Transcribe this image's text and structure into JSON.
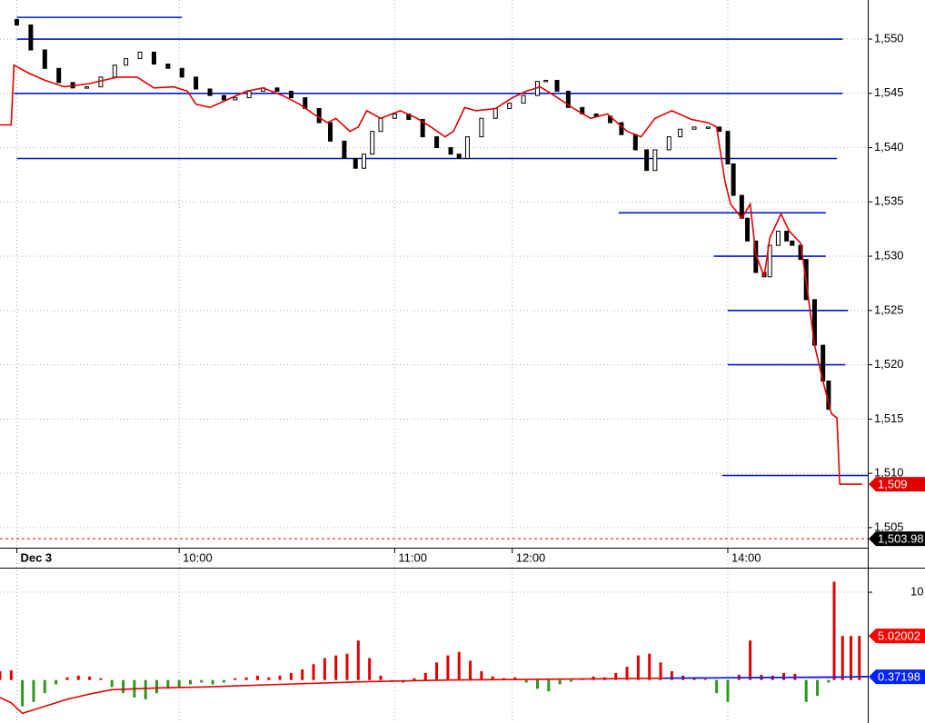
{
  "chart_data": [
    {
      "type": "candlestick",
      "xlim": [
        0,
        310
      ],
      "ylim": [
        1503.4,
        1553.6
      ],
      "xticks": [
        {
          "value": 6,
          "label": "Dec 3"
        },
        {
          "value": 64,
          "label": "10:00"
        },
        {
          "value": 141,
          "label": "11:00"
        },
        {
          "value": 183,
          "label": "12:00"
        },
        {
          "value": 260,
          "label": "14:00"
        }
      ],
      "yticks": [
        {
          "value": 1550,
          "label": "1,550"
        },
        {
          "value": 1545,
          "label": "1,545"
        },
        {
          "value": 1540,
          "label": "1,540"
        },
        {
          "value": 1535,
          "label": "1,535"
        },
        {
          "value": 1530,
          "label": "1,530"
        },
        {
          "value": 1525,
          "label": "1,525"
        },
        {
          "value": 1520,
          "label": "1,520"
        },
        {
          "value": 1515,
          "label": "1,515"
        },
        {
          "value": 1510,
          "label": "1,510"
        },
        {
          "value": 1505,
          "label": "1,505"
        }
      ],
      "grid": true,
      "up_color": "#ffffff",
      "down_color": "#000000",
      "x": [
        6,
        11,
        16,
        21,
        26,
        31,
        36,
        41,
        45,
        50,
        55,
        60,
        65,
        70,
        75,
        80,
        84,
        89,
        94,
        99,
        104,
        109,
        114,
        118,
        123,
        127,
        130,
        133,
        136,
        141,
        146,
        151,
        156,
        161,
        164,
        167,
        172,
        177,
        182,
        187,
        192,
        195,
        199,
        203,
        208,
        213,
        218,
        222,
        227,
        231,
        234,
        239,
        243,
        248,
        253,
        257,
        260,
        262,
        265,
        267,
        270,
        273,
        275,
        278,
        281,
        283,
        286,
        288,
        291,
        294,
        296
      ],
      "open": [
        1551.8,
        1551.3,
        1549,
        1547.3,
        1546,
        1545.5,
        1545.6,
        1546.5,
        1547.6,
        1548.2,
        1548.8,
        1547.7,
        1547.3,
        1546.5,
        1545.4,
        1544.8,
        1544.4,
        1544.6,
        1545.2,
        1545.5,
        1545.2,
        1544.6,
        1543.6,
        1542.3,
        1540.6,
        1539,
        1538.1,
        1539.4,
        1541.5,
        1542.7,
        1543.1,
        1542.6,
        1541,
        1540,
        1539.4,
        1539,
        1541,
        1542.7,
        1543.6,
        1544.1,
        1544.8,
        1546.1,
        1546.2,
        1545.2,
        1543.7,
        1543.1,
        1542.9,
        1542.3,
        1541.2,
        1539.8,
        1537.9,
        1539.8,
        1541,
        1541.7,
        1541.9,
        1541.9,
        1541.5,
        1538.5,
        1535.6,
        1533.5,
        1531.4,
        1528.5,
        1528.1,
        1531,
        1532.3,
        1531.4,
        1531,
        1529.7,
        1526,
        1521.8,
        1518.5
      ],
      "close": [
        1551.3,
        1549,
        1547.3,
        1546,
        1545.5,
        1545.6,
        1546.5,
        1547.6,
        1548.2,
        1548.8,
        1547.7,
        1547.3,
        1546.5,
        1545.4,
        1544.8,
        1544.4,
        1544.6,
        1545.2,
        1545.5,
        1545.2,
        1544.6,
        1543.6,
        1542.3,
        1540.6,
        1539,
        1538.1,
        1539.4,
        1541.5,
        1542.7,
        1543.1,
        1542.6,
        1541,
        1540,
        1539.4,
        1539,
        1541,
        1542.7,
        1543.6,
        1544.1,
        1544.8,
        1546.1,
        1546.2,
        1545.2,
        1543.7,
        1543.1,
        1542.9,
        1542.3,
        1541.2,
        1539.8,
        1537.9,
        1539.8,
        1541,
        1541.7,
        1541.9,
        1541.9,
        1541.5,
        1538.5,
        1535.6,
        1533.5,
        1531.4,
        1528.5,
        1528.1,
        1531,
        1532.3,
        1531.4,
        1531,
        1529.7,
        1526,
        1521.8,
        1518.5,
        1515.9
      ],
      "lines": [
        {
          "color": "#e00000",
          "x": [
            0,
            4,
            5,
            10,
            16,
            23,
            32,
            42,
            49,
            55,
            62,
            67,
            70,
            75,
            81,
            88,
            94,
            101,
            107,
            112,
            117,
            120,
            125,
            128,
            131,
            136,
            143,
            149,
            154,
            159,
            162,
            166,
            170,
            177,
            183,
            188,
            193,
            198,
            205,
            211,
            217,
            224,
            229,
            234,
            240,
            247,
            253,
            256,
            259,
            261,
            265,
            268,
            270,
            273,
            275,
            279,
            282,
            286,
            288,
            291,
            294,
            297,
            299,
            300,
            308
          ],
          "values": [
            1542.1,
            1542.1,
            1547.6,
            1546.9,
            1546.2,
            1545.6,
            1545.9,
            1546.5,
            1546.5,
            1545.5,
            1545.6,
            1545.2,
            1544,
            1543.7,
            1544.4,
            1545.2,
            1545.5,
            1544.8,
            1544,
            1543.1,
            1542.3,
            1542.7,
            1541.5,
            1541.9,
            1543.4,
            1542.7,
            1543.4,
            1542.7,
            1541.9,
            1541,
            1541.5,
            1543.7,
            1543.4,
            1543.6,
            1544.6,
            1545.2,
            1545.6,
            1544.8,
            1543.6,
            1542.7,
            1543.1,
            1541.5,
            1541,
            1542.7,
            1543.4,
            1542.6,
            1542.3,
            1541.9,
            1536.9,
            1534.8,
            1533.5,
            1534.8,
            1530.2,
            1528.1,
            1531.7,
            1533.9,
            1532.3,
            1531.2,
            1527.7,
            1521.8,
            1518.5,
            1515.5,
            1515.1,
            1509,
            1509
          ]
        }
      ],
      "levels": [
        {
          "value": 1552,
          "from": 6,
          "to": 65
        },
        {
          "value": 1550,
          "from": 6,
          "to": 301
        },
        {
          "value": 1545,
          "from": 5,
          "to": 301
        },
        {
          "value": 1539,
          "from": 6,
          "to": 299
        },
        {
          "value": 1534,
          "from": 221,
          "to": 295
        },
        {
          "value": 1530,
          "from": 255,
          "to": 295
        },
        {
          "value": 1525,
          "from": 260,
          "to": 303
        },
        {
          "value": 1520,
          "from": 260,
          "to": 302
        },
        {
          "value": 1509.8,
          "from": 258,
          "to": 310
        }
      ],
      "level_color": "#0018c8",
      "tags": [
        {
          "value": 1509,
          "label": "1,509",
          "color": "#e00000"
        },
        {
          "value": 1503.98,
          "label": "1,503.98",
          "color": "#000000",
          "guide": true,
          "guide_color": "#e00000"
        }
      ]
    },
    {
      "type": "bar",
      "xlim": [
        0,
        310
      ],
      "ylim": [
        -4.9,
        12.8
      ],
      "yticks": [
        10
      ],
      "grid": true,
      "positive_color": "#e00000",
      "negative_color": "#2a9a1a",
      "x": [
        0,
        4,
        8,
        12,
        16,
        20,
        24,
        28,
        32,
        36,
        40,
        44,
        48,
        52,
        56,
        60,
        64,
        68,
        72,
        76,
        80,
        84,
        88,
        92,
        96,
        100,
        104,
        108,
        112,
        116,
        120,
        124,
        128,
        132,
        136,
        140,
        144,
        148,
        152,
        156,
        160,
        164,
        168,
        172,
        176,
        180,
        184,
        188,
        192,
        196,
        200,
        204,
        208,
        212,
        216,
        220,
        224,
        228,
        232,
        236,
        240,
        244,
        248,
        252,
        256,
        260,
        264,
        268,
        272,
        276,
        280,
        284,
        288,
        292,
        296,
        298,
        301,
        304,
        307
      ],
      "values": [
        1.0,
        1.1,
        -3,
        -2.5,
        -1.5,
        -0.5,
        0.3,
        0.5,
        0.4,
        0.2,
        -0.8,
        -1.5,
        -2,
        -2.2,
        -1.5,
        -1,
        -0.8,
        -0.5,
        -0.3,
        -0.5,
        -0.3,
        0.2,
        0.3,
        0.5,
        0.3,
        0.5,
        0.8,
        1.2,
        1.8,
        2.5,
        2.8,
        3.0,
        4.5,
        2.5,
        0.5,
        -0.2,
        -0.3,
        0.2,
        0.8,
        2.0,
        2.8,
        3.2,
        2.2,
        1.0,
        0.4,
        0.2,
        0.3,
        -0.3,
        -1.0,
        -1.3,
        -0.5,
        -0.2,
        0.2,
        0.4,
        0.3,
        0.8,
        1.5,
        2.8,
        3.0,
        2.0,
        1.0,
        0.5,
        0.3,
        0.1,
        -1.5,
        -2.5,
        0.6,
        4.5,
        0.6,
        0.5,
        0.8,
        0.7,
        -2.5,
        -1.8,
        -0.3,
        11.2,
        5.02,
        5.02,
        5.02
      ],
      "lines": [
        {
          "color": "#e00000",
          "x": [
            0,
            4,
            8,
            16,
            24,
            32,
            40,
            56,
            72,
            100,
            130,
            160,
            200,
            240,
            280,
            296,
            310
          ],
          "values": [
            -2.0,
            -2.6,
            -3.8,
            -3.0,
            -2.2,
            -1.6,
            -1.1,
            -0.9,
            -0.8,
            -0.5,
            -0.2,
            0,
            0.1,
            0.2,
            0.3,
            0.3,
            0.4
          ]
        },
        {
          "color": "#0022ff",
          "x": [
            237,
            280,
            310
          ],
          "values": [
            0.2,
            0.3,
            0.37198
          ]
        }
      ],
      "tags": [
        {
          "value": 5.02002,
          "color": "#ff0000"
        },
        {
          "value": 0.37198,
          "color": "#0022ff"
        }
      ]
    }
  ]
}
